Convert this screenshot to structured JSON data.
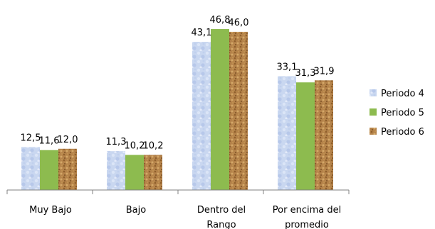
{
  "chart_data": {
    "type": "bar",
    "categories": [
      "Muy Bajo",
      "Bajo",
      "Dentro del Rango",
      "Por encima del promedio"
    ],
    "category_lines": [
      [
        "Muy Bajo"
      ],
      [
        "Bajo"
      ],
      [
        "Dentro del",
        "Rango"
      ],
      [
        "Por encima del",
        "promedio"
      ]
    ],
    "series": [
      {
        "name": "Periodo 4",
        "values": [
          12.5,
          11.3,
          43.1,
          33.1
        ],
        "labels": [
          "12,5",
          "11,3",
          "43,1",
          "33,1"
        ],
        "color": "#c6d4ee",
        "pattern": "light-blue-texture"
      },
      {
        "name": "Periodo 5",
        "values": [
          11.6,
          10.2,
          46.8,
          31.3
        ],
        "labels": [
          "11,6",
          "10,2",
          "46,8",
          "31,3"
        ],
        "color": "#8dbb4f",
        "pattern": "solid"
      },
      {
        "name": "Periodo 6",
        "values": [
          12.0,
          10.2,
          46.0,
          31.9
        ],
        "labels": [
          "12,0",
          "10,2",
          "46,0",
          "31,9"
        ],
        "color": "#b78447",
        "pattern": "cork-texture"
      }
    ],
    "ylim": [
      0,
      50
    ],
    "grid": false,
    "legend_position": "right",
    "title": "",
    "xlabel": "",
    "ylabel": ""
  }
}
